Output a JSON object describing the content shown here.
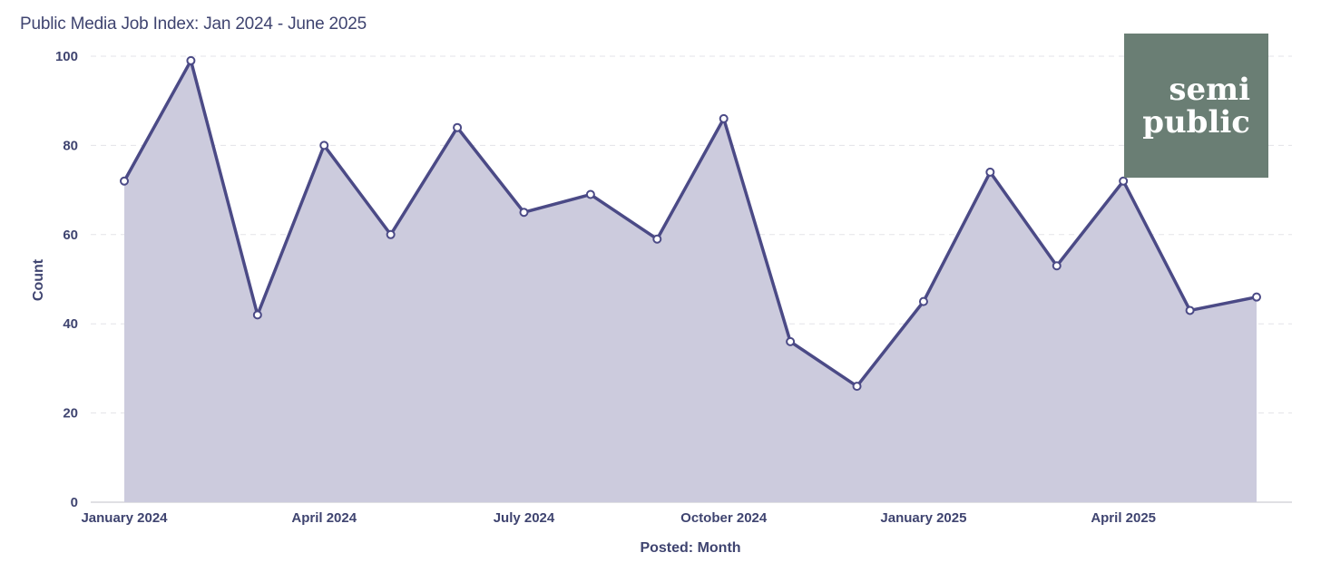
{
  "title": "Public Media Job Index: Jan 2024 - June 2025",
  "logo": {
    "line1": "semi",
    "line2": "public"
  },
  "colors": {
    "line": "#4b4a86",
    "fill": "#cccbdd",
    "grid": "#e3e3e8",
    "text": "#3f4470",
    "logo_bg": "#6a7e74"
  },
  "chart_data": {
    "type": "area",
    "xlabel": "Posted: Month",
    "ylabel": "Count",
    "ylim": [
      0,
      100
    ],
    "yticks": [
      0,
      20,
      40,
      60,
      80,
      100
    ],
    "grid": true,
    "x": [
      "2024-01",
      "2024-02",
      "2024-03",
      "2024-04",
      "2024-05",
      "2024-06",
      "2024-07",
      "2024-08",
      "2024-09",
      "2024-10",
      "2024-11",
      "2024-12",
      "2025-01",
      "2025-02",
      "2025-03",
      "2025-04",
      "2025-05",
      "2025-06"
    ],
    "values": [
      72,
      99,
      42,
      80,
      60,
      84,
      65,
      69,
      59,
      86,
      36,
      26,
      45,
      74,
      53,
      72,
      43,
      46
    ],
    "xticks": [
      {
        "index": 0,
        "label": "January 2024"
      },
      {
        "index": 3,
        "label": "April 2024"
      },
      {
        "index": 6,
        "label": "July 2024"
      },
      {
        "index": 9,
        "label": "October 2024"
      },
      {
        "index": 12,
        "label": "January 2025"
      },
      {
        "index": 15,
        "label": "April 2025"
      }
    ]
  }
}
